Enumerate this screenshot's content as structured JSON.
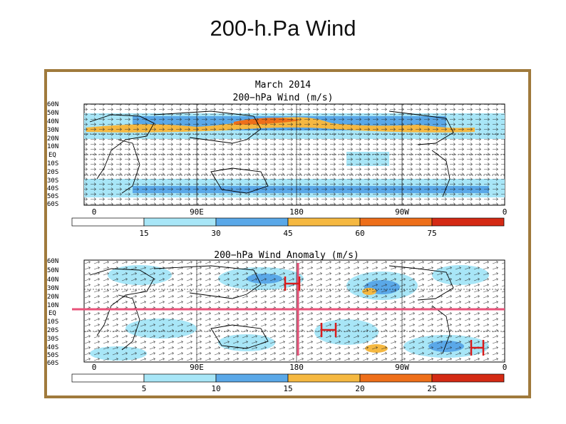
{
  "slide": {
    "title": "200-h.Pa Wind"
  },
  "top_panel": {
    "title_line1": "March 2014",
    "title_line2": "200−hPa Wind (m/s)",
    "lat_labels": [
      "60N",
      "50N",
      "40N",
      "30N",
      "20N",
      "10N",
      "EQ",
      "10S",
      "20S",
      "30S",
      "40S",
      "50S",
      "60S"
    ],
    "lon_labels": [
      "0",
      "90E",
      "180",
      "90W",
      "0"
    ],
    "colorbar_ticks": [
      "15",
      "30",
      "45",
      "60",
      "75"
    ],
    "colorbar_colors": [
      "#ffffff",
      "#a8e6f7",
      "#5aa8e8",
      "#f5b841",
      "#ee6f1a",
      "#d42a14"
    ]
  },
  "bottom_panel": {
    "title": "200−hPa Wind Anomaly (m/s)",
    "lat_labels": [
      "60N",
      "50N",
      "40N",
      "30N",
      "20N",
      "10N",
      "EQ",
      "10S",
      "20S",
      "30S",
      "40S",
      "50S",
      "60S"
    ],
    "lon_labels": [
      "0",
      "90E",
      "180",
      "90W",
      "0"
    ],
    "colorbar_ticks": [
      "5",
      "10",
      "15",
      "20",
      "25"
    ],
    "colorbar_colors": [
      "#ffffff",
      "#a8e6f7",
      "#5aa8e8",
      "#f5b841",
      "#ee6f1a",
      "#d42a14"
    ],
    "annotation_colors": {
      "crosshair": "#e8537a",
      "marker": "#d81c1c"
    },
    "high_markers": [
      "H",
      "H",
      "H"
    ]
  }
}
